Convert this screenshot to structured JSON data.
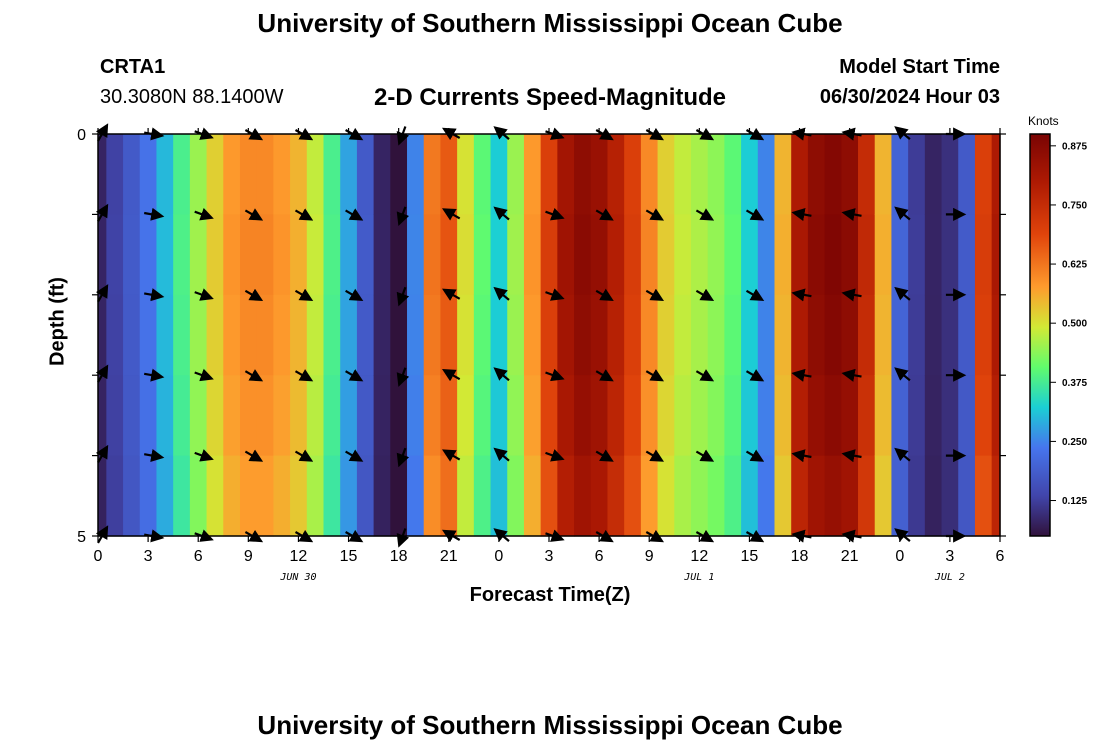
{
  "page": {
    "title_top": "University of Southern Mississippi Ocean Cube",
    "title_bottom": "University of Southern Mississippi Ocean Cube",
    "station": "CRTA1",
    "coords": "30.3080N  88.1400W",
    "chart_title": "2-D Currents Speed-Magnitude",
    "model_label": "Model Start Time",
    "model_time": "06/30/2024 Hour 03"
  },
  "chart_data": {
    "type": "heatmap",
    "title": "2-D Currents Speed-Magnitude",
    "xlabel": "Forecast Time(Z)",
    "ylabel": "Depth (ft)",
    "x_hours": [
      0,
      1,
      2,
      3,
      4,
      5,
      6,
      7,
      8,
      9,
      10,
      11,
      12,
      13,
      14,
      15,
      16,
      17,
      18,
      19,
      20,
      21,
      22,
      23,
      24,
      25,
      26,
      27,
      28,
      29,
      30,
      31,
      32,
      33,
      34,
      35,
      36,
      37,
      38,
      39,
      40,
      41,
      42,
      43,
      44,
      45,
      46,
      47,
      48,
      49,
      50,
      51,
      52,
      53,
      54
    ],
    "surface_speed_knots": [
      0.08,
      0.13,
      0.18,
      0.23,
      0.3,
      0.38,
      0.45,
      0.52,
      0.58,
      0.6,
      0.6,
      0.58,
      0.55,
      0.48,
      0.38,
      0.28,
      0.18,
      0.08,
      0.05,
      0.25,
      0.62,
      0.66,
      0.5,
      0.4,
      0.32,
      0.45,
      0.58,
      0.7,
      0.82,
      0.86,
      0.84,
      0.78,
      0.7,
      0.6,
      0.52,
      0.48,
      0.46,
      0.44,
      0.4,
      0.32,
      0.25,
      0.55,
      0.8,
      0.86,
      0.88,
      0.86,
      0.75,
      0.55,
      0.2,
      0.12,
      0.08,
      0.1,
      0.18,
      0.7,
      0.8
    ],
    "xticks": [
      0,
      3,
      6,
      9,
      12,
      15,
      18,
      21,
      24,
      27,
      30,
      33,
      36,
      39,
      42,
      45,
      48,
      51,
      54
    ],
    "xtick_labels": [
      "0",
      "3",
      "6",
      "9",
      "12",
      "15",
      "18",
      "21",
      "0",
      "3",
      "6",
      "9",
      "12",
      "15",
      "18",
      "21",
      "0",
      "3",
      "6"
    ],
    "date_labels": [
      {
        "hour": 12,
        "text": "JUN 30"
      },
      {
        "hour": 36,
        "text": "JUL 1"
      },
      {
        "hour": 51,
        "text": "JUL 2"
      }
    ],
    "ylim": [
      0,
      5
    ],
    "ytick_labels": [
      "0",
      "5"
    ],
    "colorbar": {
      "label": "Knots",
      "range": [
        0.05,
        0.9
      ],
      "ticks": [
        0.125,
        0.25,
        0.375,
        0.5,
        0.625,
        0.75,
        0.875
      ],
      "tick_labels": [
        "0.125",
        "0.250",
        "0.375",
        "0.500",
        "0.625",
        "0.750",
        "0.875"
      ]
    },
    "vector_hours": [
      0,
      3,
      6,
      9,
      12,
      15,
      18,
      21,
      24,
      27,
      30,
      33,
      36,
      39,
      42,
      45,
      48,
      51
    ],
    "vector_depths_ft": [
      0,
      1,
      2,
      3,
      4,
      5
    ],
    "vector_directions_deg": [
      -60,
      10,
      20,
      30,
      30,
      30,
      110,
      -150,
      -140,
      20,
      30,
      30,
      30,
      30,
      -170,
      -170,
      -140,
      0
    ]
  }
}
